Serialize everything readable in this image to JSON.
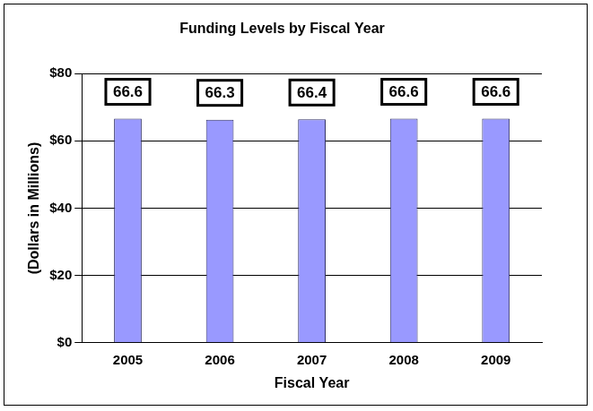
{
  "chart_data": {
    "type": "bar",
    "title": "Funding Levels by Fiscal Year",
    "x_label": "Fiscal Year",
    "y_label": "(Dollars in Millions)",
    "categories": [
      "2005",
      "2006",
      "2007",
      "2008",
      "2009"
    ],
    "values": [
      66.6,
      66.3,
      66.4,
      66.6,
      66.6
    ],
    "color": "#9999ff",
    "ylim": [
      0,
      80
    ],
    "yticks": [
      {
        "value": 0,
        "label": "$0"
      },
      {
        "value": 20,
        "label": "$20"
      },
      {
        "value": 40,
        "label": "$40"
      },
      {
        "value": 60,
        "label": "$60"
      },
      {
        "value": 80,
        "label": "$80"
      }
    ],
    "grid": true,
    "data_labels": true
  }
}
